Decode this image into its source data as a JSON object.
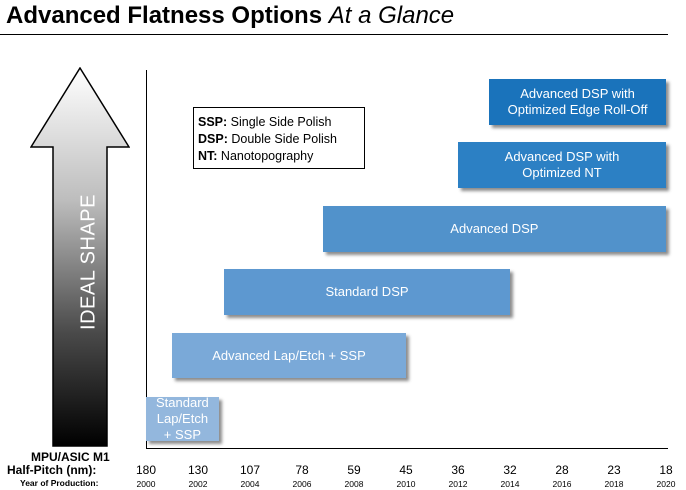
{
  "title": {
    "main": "Advanced Flatness Options",
    "sub": "At a Glance"
  },
  "legend": [
    {
      "abbr": "SSP:",
      "text": " Single Side Polish"
    },
    {
      "abbr": "DSP:",
      "text": " Double Side Polish"
    },
    {
      "abbr": "NT:",
      "text": " Nanotopography"
    }
  ],
  "arrow": {
    "label": "IDEAL SHAPE"
  },
  "axis": {
    "row1_label": "MPU/ASIC M1",
    "row2_label": "Half-Pitch (nm):",
    "row3_label": "Year of Production:",
    "half_pitch": [
      "180",
      "130",
      "107",
      "78",
      "59",
      "45",
      "36",
      "32",
      "28",
      "23",
      "18"
    ],
    "years": [
      "2000",
      "2002",
      "2004",
      "2006",
      "2008",
      "2010",
      "2012",
      "2014",
      "2016",
      "2018",
      "2020"
    ]
  },
  "bars": [
    {
      "label": "Standard\nLap/Etch\n+ SSP",
      "color": "#93b7dd",
      "start_year": 2000,
      "end_year": 2002.8
    },
    {
      "label": "Advanced Lap/Etch + SSP",
      "color": "#7aa9d8",
      "start_year": 2001.0,
      "end_year": 2010.0
    },
    {
      "label": "Standard DSP",
      "color": "#5d98d0",
      "start_year": 2003.0,
      "end_year": 2014.0
    },
    {
      "label": "Advanced DSP",
      "color": "#5192cb",
      "start_year": 2006.8,
      "end_year": 2020.0
    },
    {
      "label": "Advanced DSP with\nOptimized NT",
      "color": "#2c80c4",
      "start_year": 2012.0,
      "end_year": 2020.0
    },
    {
      "label": "Advanced DSP with\nOptimized Edge Roll-Off",
      "color": "#1a73bb",
      "start_year": 2013.2,
      "end_year": 2020.0
    }
  ]
}
